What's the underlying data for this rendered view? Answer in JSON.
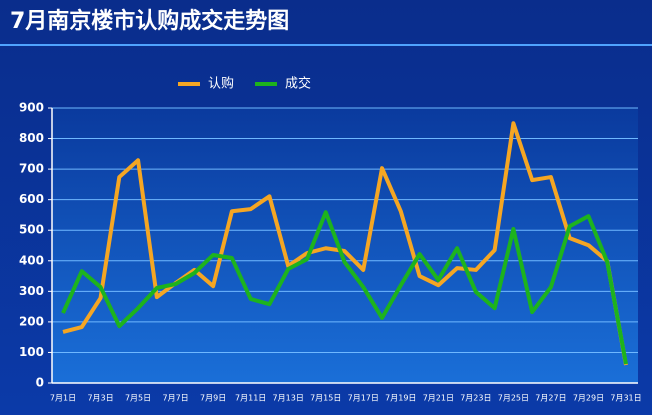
{
  "chart_data": {
    "type": "line",
    "title": "7月南京楼市认购成交走势图",
    "categories": [
      "7月1日",
      null,
      "7月3日",
      null,
      "7月5日",
      null,
      "7月7日",
      null,
      "7月9日",
      null,
      "7月11日",
      null,
      "7月13日",
      null,
      "7月15日",
      null,
      "7月17日",
      null,
      "7月19日",
      null,
      "7月21日",
      null,
      "7月23日",
      null,
      "7月25日",
      null,
      "7月27日",
      null,
      "7月29日",
      null,
      "7月31日"
    ],
    "series": [
      {
        "name": "认购",
        "color": "#f5a623",
        "values": [
          167,
          183,
          278,
          674,
          729,
          281,
          327,
          370,
          317,
          562,
          569,
          611,
          383,
          425,
          441,
          432,
          370,
          703,
          562,
          350,
          320,
          376,
          370,
          435,
          850,
          664,
          674,
          474,
          451,
          399,
          59
        ]
      },
      {
        "name": "成交",
        "color": "#1db31d",
        "values": [
          229,
          366,
          314,
          186,
          245,
          311,
          324,
          360,
          419,
          409,
          275,
          258,
          373,
          405,
          559,
          396,
          314,
          213,
          320,
          422,
          337,
          441,
          298,
          245,
          504,
          232,
          314,
          513,
          546,
          396,
          62
        ]
      }
    ],
    "ylim": [
      0,
      900
    ],
    "yticks": [
      0,
      100,
      200,
      300,
      400,
      500,
      600,
      700,
      800,
      900
    ],
    "grid": true
  }
}
